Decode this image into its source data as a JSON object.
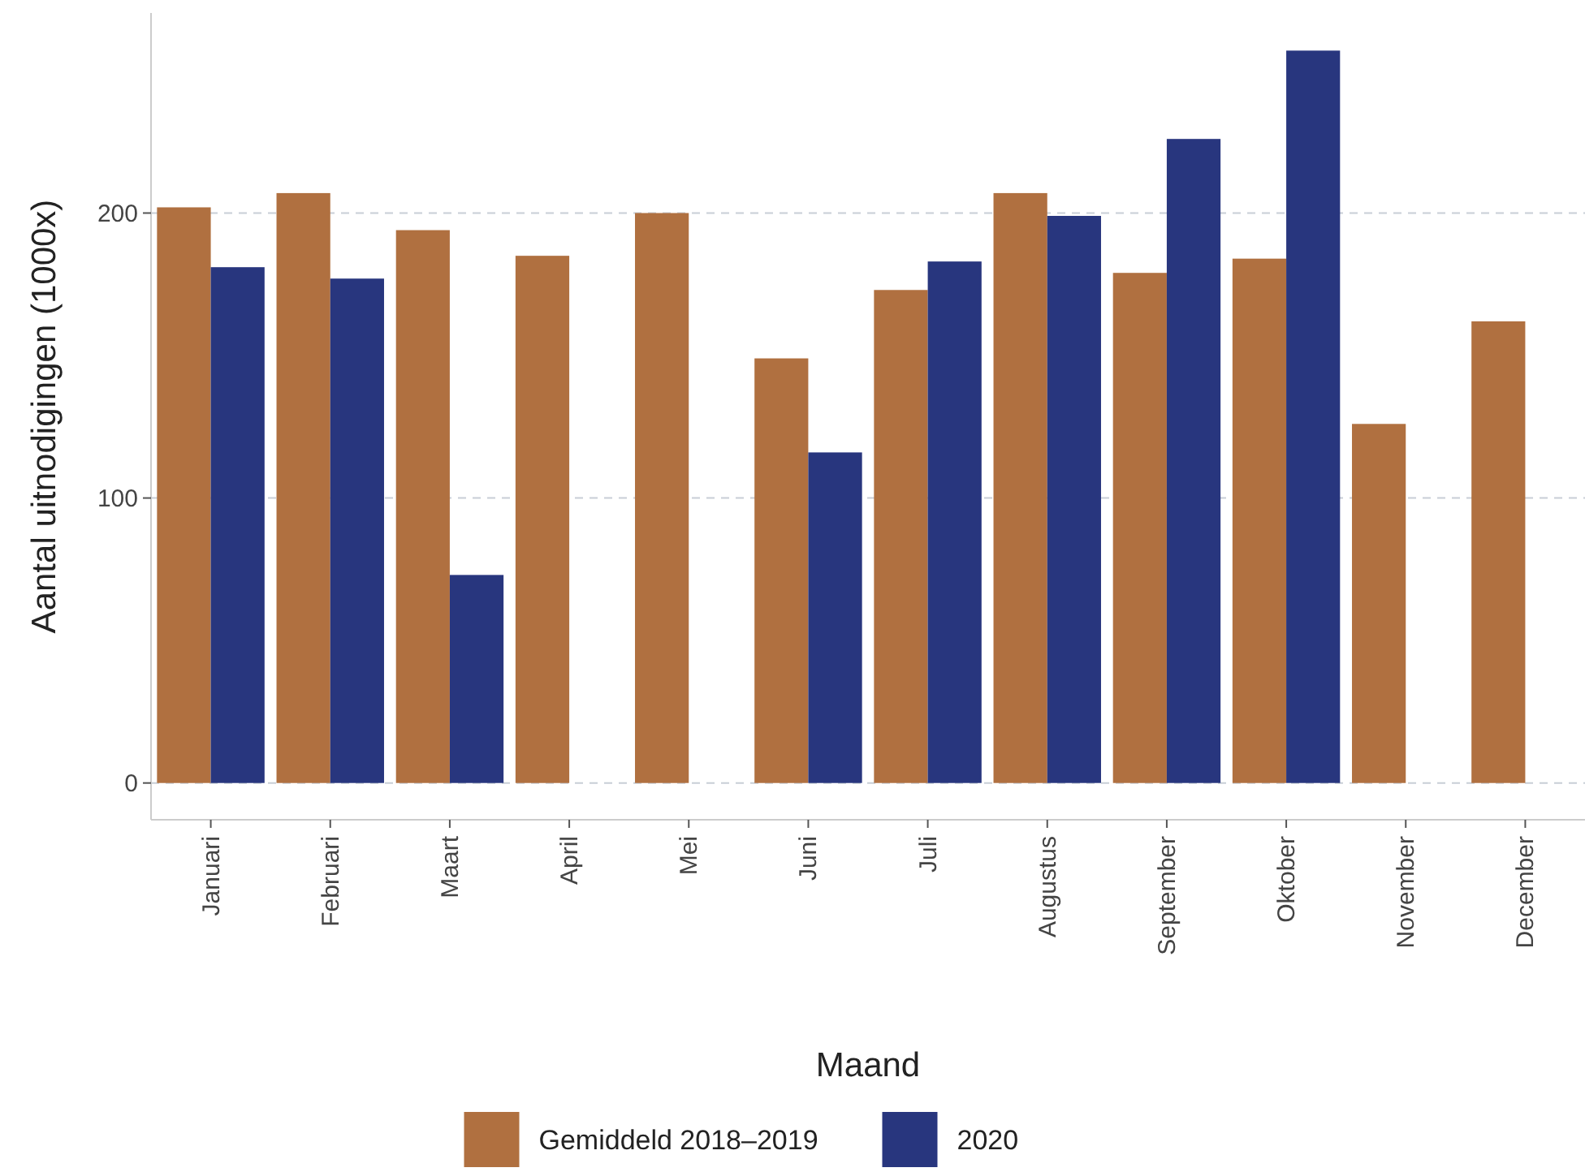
{
  "chart_data": {
    "type": "bar",
    "xlabel": "Maand",
    "ylabel": "Aantal uitnodigingen (1000x)",
    "categories": [
      "Januari",
      "Februari",
      "Maart",
      "April",
      "Mei",
      "Juni",
      "Juli",
      "Augustus",
      "September",
      "Oktober",
      "November",
      "December"
    ],
    "series": [
      {
        "name": "Gemiddeld 2018–2019",
        "color": "#b07040",
        "values": [
          202,
          207,
          194,
          185,
          200,
          149,
          173,
          207,
          179,
          184,
          126,
          162
        ]
      },
      {
        "name": "2020",
        "color": "#28367e",
        "values": [
          181,
          177,
          73,
          null,
          null,
          116,
          183,
          199,
          226,
          257,
          null,
          null
        ]
      }
    ],
    "ylim": [
      -12.9,
      270.2
    ],
    "yticks": [
      0,
      100,
      200
    ],
    "grid": "y",
    "legend": "bottom"
  }
}
